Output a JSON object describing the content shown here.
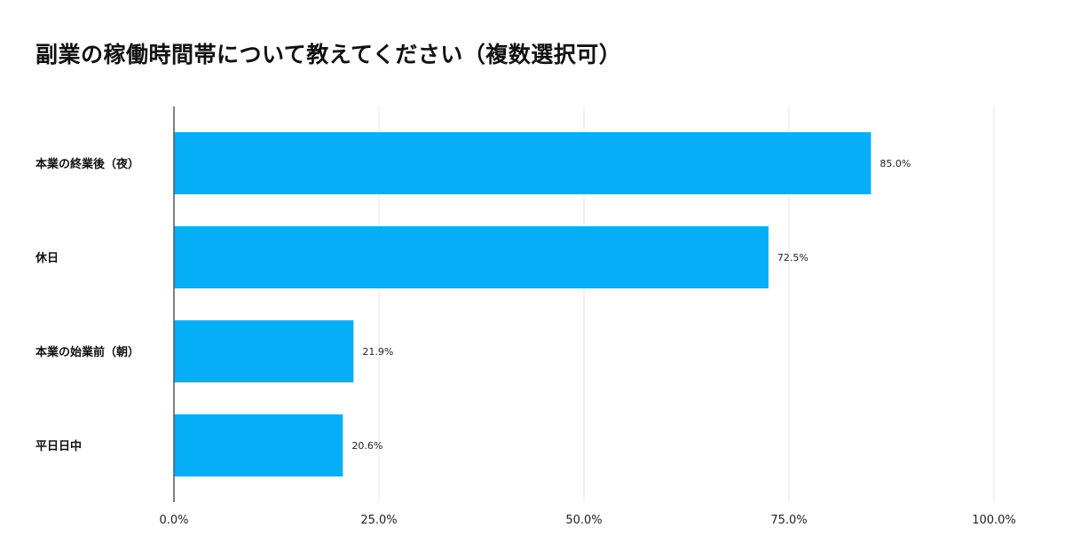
{
  "chart_data": {
    "type": "bar",
    "orientation": "horizontal",
    "title": "副業の稼働時間帯について教えてください（複数選択可）",
    "categories": [
      "本業の終業後（夜）",
      "休日",
      "本業の始業前（朝）",
      "平日日中"
    ],
    "values": [
      85.0,
      72.5,
      21.9,
      20.6
    ],
    "value_labels": [
      "85.0%",
      "72.5%",
      "21.9%",
      "20.6%"
    ],
    "xlim": [
      0,
      100
    ],
    "xticks": [
      0,
      25,
      50,
      75,
      100
    ],
    "xtick_labels": [
      "0.0%",
      "25.0%",
      "50.0%",
      "75.0%",
      "100.0%"
    ],
    "xlabel": "",
    "ylabel": "",
    "grid": true,
    "bar_color": "#06AEF7",
    "grid_color": "#E6E6E6",
    "axis_color": "#555555"
  }
}
